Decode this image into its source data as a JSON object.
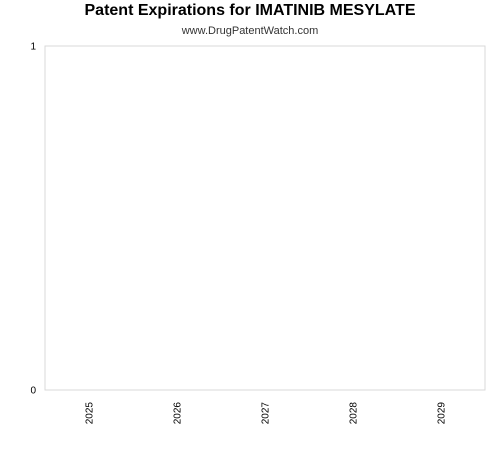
{
  "header": {
    "title": "Patent Expirations for IMATINIB MESYLATE",
    "subtitle": "www.DrugPatentWatch.com"
  },
  "chart_data": {
    "type": "bar",
    "title": "Patent Expirations for IMATINIB MESYLATE",
    "subtitle": "www.DrugPatentWatch.com",
    "categories": [
      "2025",
      "2026",
      "2027",
      "2028",
      "2029"
    ],
    "values": [
      0,
      0,
      0,
      0,
      0
    ],
    "ylim": [
      0,
      1
    ],
    "yticks": [
      "0",
      "1"
    ],
    "grid": false,
    "xlabel": "",
    "ylabel": ""
  },
  "colors": {
    "frame": "#d9d9d9",
    "text": "#000000"
  }
}
